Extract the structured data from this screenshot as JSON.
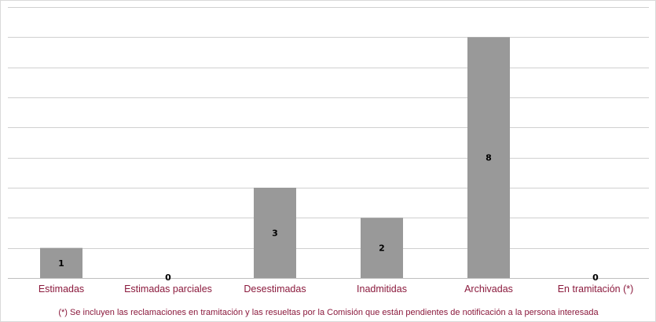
{
  "chart_data": {
    "type": "bar",
    "categories": [
      "Estimadas",
      "Estimadas parciales",
      "Desestimadas",
      "Inadmitidas",
      "Archivadas",
      "En tramitación (*)"
    ],
    "values": [
      1,
      0,
      3,
      2,
      8,
      0
    ],
    "data_labels": [
      "1",
      "0",
      "3",
      "2",
      "8",
      "0"
    ],
    "ylim": [
      0,
      9
    ],
    "grid": true,
    "colors": {
      "bar": "#999999",
      "label_text": "#8b1a3d",
      "footnote_text": "#8b1a3d",
      "grid": "#d0d0d0"
    }
  },
  "footnote": "(*) Se incluyen las reclamaciones en tramitación y las resueltas por la Comisión que están pendientes de notificación a la persona interesada"
}
